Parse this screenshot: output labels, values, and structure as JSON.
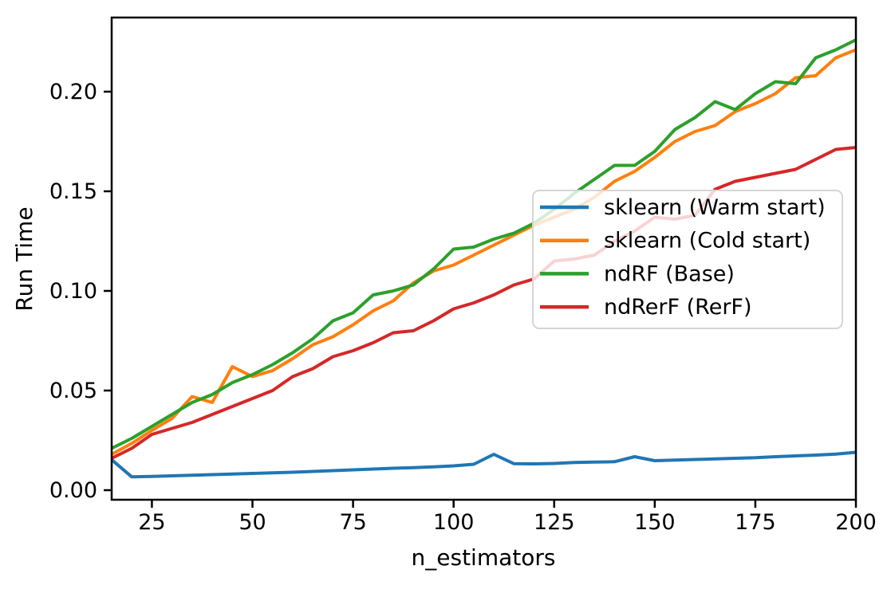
{
  "chart_data": {
    "type": "line",
    "title": "",
    "xlabel": "n_estimators",
    "ylabel": "Run Time",
    "grid": false,
    "xlim": [
      15,
      200
    ],
    "ylim": [
      -0.0048,
      0.2372
    ],
    "xticks": [
      25,
      50,
      75,
      100,
      125,
      150,
      175,
      200
    ],
    "yticks": [
      0.0,
      0.05,
      0.1,
      0.15,
      0.2
    ],
    "ytick_decimals": 2,
    "legend": {
      "position": "center right",
      "background_opacity": 0.8
    },
    "x": [
      15,
      20,
      25,
      30,
      35,
      40,
      45,
      50,
      55,
      60,
      65,
      70,
      75,
      80,
      85,
      90,
      95,
      100,
      105,
      110,
      115,
      120,
      125,
      130,
      135,
      140,
      145,
      150,
      155,
      160,
      165,
      170,
      175,
      180,
      185,
      190,
      195,
      200
    ],
    "series": [
      {
        "name": "sklearn (Warm start)",
        "color": "#1f77b4",
        "values": [
          0.0153,
          0.0067,
          0.0069,
          0.0072,
          0.0075,
          0.0078,
          0.0081,
          0.0084,
          0.0087,
          0.009,
          0.0094,
          0.0098,
          0.0102,
          0.0106,
          0.011,
          0.0113,
          0.0117,
          0.0122,
          0.013,
          0.018,
          0.0133,
          0.0132,
          0.0134,
          0.0139,
          0.0141,
          0.0143,
          0.0168,
          0.0148,
          0.0151,
          0.0154,
          0.0157,
          0.016,
          0.0163,
          0.0168,
          0.0172,
          0.0176,
          0.0181,
          0.019
        ]
      },
      {
        "name": "sklearn (Cold start)",
        "color": "#ff7f0e",
        "values": [
          0.018,
          0.0235,
          0.03,
          0.036,
          0.047,
          0.044,
          0.062,
          0.057,
          0.06,
          0.066,
          0.073,
          0.077,
          0.083,
          0.09,
          0.095,
          0.104,
          0.11,
          0.113,
          0.118,
          0.123,
          0.128,
          0.133,
          0.137,
          0.141,
          0.147,
          0.155,
          0.16,
          0.167,
          0.175,
          0.18,
          0.183,
          0.19,
          0.194,
          0.199,
          0.207,
          0.208,
          0.217,
          0.221
        ]
      },
      {
        "name": "ndRF (Base)",
        "color": "#2ca02c",
        "values": [
          0.021,
          0.026,
          0.032,
          0.038,
          0.044,
          0.048,
          0.054,
          0.058,
          0.063,
          0.069,
          0.076,
          0.085,
          0.089,
          0.098,
          0.1,
          0.103,
          0.111,
          0.121,
          0.122,
          0.126,
          0.129,
          0.134,
          0.141,
          0.149,
          0.156,
          0.163,
          0.163,
          0.17,
          0.181,
          0.187,
          0.195,
          0.191,
          0.199,
          0.205,
          0.204,
          0.217,
          0.221,
          0.226
        ]
      },
      {
        "name": "ndRerF (RerF)",
        "color": "#d62728",
        "values": [
          0.016,
          0.021,
          0.028,
          0.031,
          0.034,
          0.038,
          0.042,
          0.046,
          0.05,
          0.057,
          0.061,
          0.067,
          0.07,
          0.074,
          0.079,
          0.08,
          0.085,
          0.091,
          0.094,
          0.098,
          0.103,
          0.106,
          0.115,
          0.116,
          0.118,
          0.125,
          0.13,
          0.137,
          0.136,
          0.138,
          0.151,
          0.155,
          0.157,
          0.159,
          0.161,
          0.166,
          0.171,
          0.172
        ]
      }
    ]
  }
}
